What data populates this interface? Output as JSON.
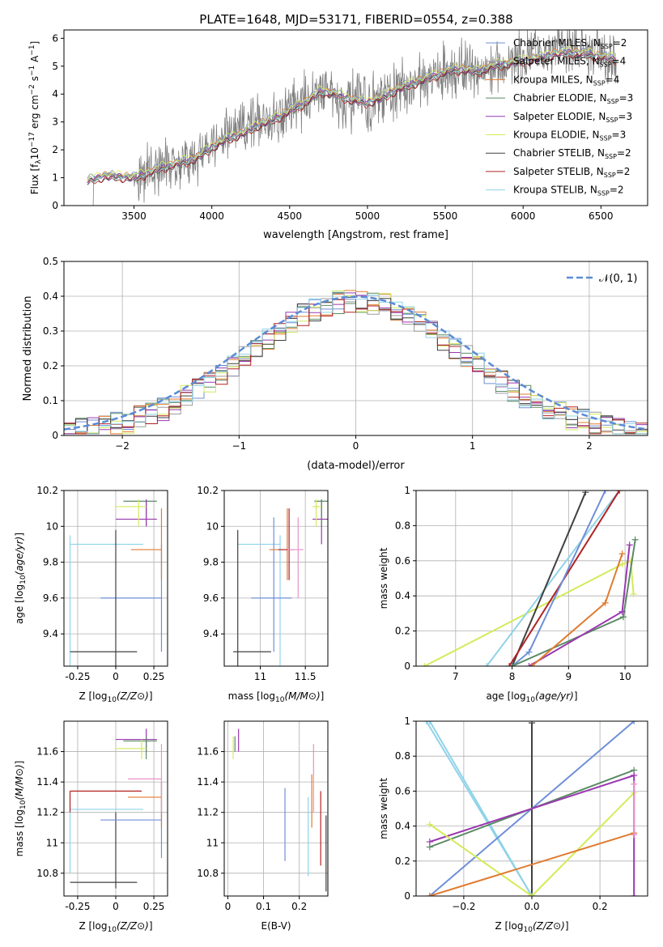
{
  "figure_title": "PLATE=1648, MJD=53171, FIBERID=0554, z=0.388",
  "chart_data": [
    {
      "id": "spectrum",
      "type": "line",
      "xlabel": "wavelength [Angstrom, rest frame]",
      "ylabel": "Flux [f$_\\lambda$10$^{-17}$ erg cm$^{-2}$ s$^{-1}$ A$^{-1}$]",
      "ylabel_parts": {
        "a": "Flux [f",
        "b": "λ",
        "c": "10",
        "d": "−17",
        "e": " erg cm",
        "f": "−2",
        "g": " s",
        "h": "−1",
        "i": " A",
        "j": "−1",
        "k": "]"
      },
      "xlim": [
        3050,
        6800
      ],
      "ylim": [
        0,
        6.3
      ],
      "xticks": [
        3500,
        4000,
        4500,
        5000,
        5500,
        6000,
        6500
      ],
      "yticks": [
        0,
        1,
        2,
        3,
        4,
        5,
        6
      ],
      "legend_position": "right",
      "observed": {
        "color": "#808080",
        "x": [
          3220,
          3240,
          3300,
          3500,
          3600,
          3700,
          3800,
          3900,
          4000,
          4100,
          4200,
          4300,
          4400,
          4500,
          4600,
          4700,
          4800,
          4900,
          5000,
          5100,
          5200,
          5300,
          5400,
          5500,
          5600,
          5700,
          5800,
          5900,
          6000,
          6100,
          6200,
          6300,
          6400,
          6500,
          6600
        ],
        "y": [
          0.0,
          0.95,
          1.1,
          1.05,
          1.3,
          1.5,
          1.6,
          1.7,
          2.3,
          2.5,
          2.7,
          3.0,
          3.2,
          3.5,
          3.8,
          4.2,
          3.9,
          3.7,
          3.6,
          3.8,
          4.2,
          4.4,
          4.6,
          4.8,
          4.9,
          4.7,
          5.0,
          5.1,
          5.2,
          5.3,
          5.6,
          5.7,
          5.5,
          5.4,
          5.2
        ],
        "noise_from_wavelength": 3500,
        "noise_amplitude": 1.8
      },
      "model": {
        "x": [
          3200,
          3300,
          3400,
          3500,
          3600,
          3700,
          3800,
          3900,
          4000,
          4100,
          4200,
          4300,
          4400,
          4500,
          4600,
          4700,
          4800,
          4900,
          5000,
          5100,
          5200,
          5300,
          5400,
          5500,
          5600,
          5700,
          5800,
          5900,
          6000,
          6100,
          6200,
          6300,
          6400,
          6500,
          6600
        ],
        "y": [
          0.9,
          1.05,
          1.05,
          1.0,
          1.2,
          1.4,
          1.55,
          1.7,
          2.1,
          2.4,
          2.6,
          2.9,
          3.1,
          3.4,
          3.7,
          4.1,
          4.0,
          3.8,
          3.7,
          3.9,
          4.2,
          4.4,
          4.6,
          4.8,
          4.9,
          4.8,
          5.0,
          5.1,
          5.2,
          5.3,
          5.45,
          5.5,
          5.45,
          5.35,
          5.25
        ]
      },
      "series": [
        {
          "name_text": "Chabrier MILES, N",
          "sub": "SSP",
          "suffix": "=2",
          "color": "#6f8fd8",
          "offset": 0.08
        },
        {
          "name_text": "Salpeter MILES, N",
          "sub": "SSP",
          "suffix": "=4",
          "color": "#9c9c9c",
          "offset": 0.03
        },
        {
          "name_text": "Kroupa MILES, N",
          "sub": "SSP",
          "suffix": "=4",
          "color": "#e07b2f",
          "offset": 0.05
        },
        {
          "name_text": "Chabrier ELODIE, N",
          "sub": "SSP",
          "suffix": "=3",
          "color": "#5a8a64",
          "offset": -0.05
        },
        {
          "name_text": "Salpeter ELODIE, N",
          "sub": "SSP",
          "suffix": "=3",
          "color": "#9a38b0",
          "offset": -0.02
        },
        {
          "name_text": "Kroupa ELODIE, N",
          "sub": "SSP",
          "suffix": "=3",
          "color": "#d4ea5a",
          "offset": 0.1
        },
        {
          "name_text": "Chabrier STELIB, N",
          "sub": "SSP",
          "suffix": "=2",
          "color": "#404040",
          "offset": -0.08
        },
        {
          "name_text": "Salpeter STELIB, N",
          "sub": "SSP",
          "suffix": "=2",
          "color": "#b22222",
          "offset": -0.1
        },
        {
          "name_text": "Kroupa STELIB, N",
          "sub": "SSP",
          "suffix": "=2",
          "color": "#8fd3e8",
          "offset": 0.0
        }
      ]
    },
    {
      "id": "residuals",
      "type": "line",
      "xlabel": "(data-model)/error",
      "ylabel": "Normed distribution",
      "xlim": [
        -2.5,
        2.5
      ],
      "ylim": [
        0,
        0.5
      ],
      "xticks": [
        -2,
        -1,
        0,
        1,
        2
      ],
      "xtick_labels": [
        "−2",
        "−1",
        "0",
        "1",
        "2"
      ],
      "yticks": [
        0.0,
        0.1,
        0.2,
        0.3,
        0.4,
        0.5
      ],
      "grid": true,
      "legend_position": "top-right",
      "gaussian": {
        "label": "𝒩(0, 1)",
        "color": "#5b8bd6",
        "mean": 0,
        "sigma": 1
      },
      "histogram_bin_width": 0.1,
      "histogram_colors": [
        "#6f8fd8",
        "#9c9c9c",
        "#e07b2f",
        "#5a8a64",
        "#9a38b0",
        "#d4ea5a",
        "#404040",
        "#b22222",
        "#8fd3e8"
      ]
    },
    {
      "id": "age-vs-Z",
      "type": "scatter",
      "xlabel": "Z [log10(Z/Z⊙)]",
      "ylabel": "age [log10(age/yr)]",
      "xlim": [
        -0.34,
        0.34
      ],
      "ylim": [
        9.22,
        10.2
      ],
      "xticks": [
        -0.25,
        0.0,
        0.25
      ],
      "yticks": [
        9.4,
        9.6,
        9.8,
        10.0,
        10.2
      ],
      "points": [
        {
          "x": -0.3,
          "y": 9.9,
          "xmin": -0.3,
          "xmax": 0.18,
          "ymin": 9.2,
          "ymax": 9.95,
          "color": "#8fd3e8"
        },
        {
          "x": 0.3,
          "y": 9.6,
          "xmin": -0.1,
          "xmax": 0.3,
          "ymin": 9.3,
          "ymax": 9.9,
          "color": "#6f8fd8"
        },
        {
          "x": 0.0,
          "y": 9.3,
          "xmin": -0.3,
          "xmax": 0.14,
          "ymin": 9.2,
          "ymax": 9.98,
          "color": "#404040"
        },
        {
          "x": 0.3,
          "y": 9.87,
          "xmin": 0.1,
          "xmax": 0.3,
          "ymin": 9.7,
          "ymax": 10.1,
          "color": "#e07b2f"
        },
        {
          "x": 0.2,
          "y": 10.14,
          "xmin": 0.05,
          "xmax": 0.27,
          "ymin": 10.0,
          "ymax": 10.15,
          "color": "#5a8a64"
        },
        {
          "x": 0.2,
          "y": 10.04,
          "xmin": 0.0,
          "xmax": 0.27,
          "ymin": 10.0,
          "ymax": 10.15,
          "color": "#9a38b0"
        },
        {
          "x": 0.15,
          "y": 10.11,
          "xmin": 0.0,
          "xmax": 0.2,
          "ymin": 10.0,
          "ymax": 10.15,
          "color": "#d4ea5a"
        }
      ]
    },
    {
      "id": "age-vs-mass",
      "type": "scatter",
      "xlabel": "mass [log10(M/M⊙)]",
      "ylabel": "",
      "xlim": [
        10.6,
        11.75
      ],
      "ylim": [
        9.22,
        10.2
      ],
      "xticks": [
        11.0,
        11.5
      ],
      "yticks": [
        9.4,
        9.6,
        9.8,
        10.0,
        10.2
      ],
      "points": [
        {
          "x": 11.22,
          "y": 9.9,
          "xmin": 10.75,
          "xmax": 11.22,
          "ymin": 9.2,
          "ymax": 9.95,
          "color": "#8fd3e8"
        },
        {
          "x": 11.15,
          "y": 9.6,
          "xmin": 10.9,
          "xmax": 11.35,
          "ymin": 9.3,
          "ymax": 10.05,
          "color": "#6f8fd8"
        },
        {
          "x": 10.75,
          "y": 9.3,
          "xmin": 10.7,
          "xmax": 11.12,
          "ymin": 9.2,
          "ymax": 9.98,
          "color": "#404040"
        },
        {
          "x": 11.3,
          "y": 9.87,
          "xmin": 11.1,
          "xmax": 11.35,
          "ymin": 9.7,
          "ymax": 10.1,
          "color": "#e07b2f"
        },
        {
          "x": 11.32,
          "y": 9.87,
          "xmin": 11.2,
          "xmax": 11.38,
          "ymin": 9.7,
          "ymax": 10.1,
          "color": "#b22222"
        },
        {
          "x": 11.42,
          "y": 9.87,
          "xmin": 11.3,
          "xmax": 11.48,
          "ymin": 9.6,
          "ymax": 10.05,
          "color": "#e892c8"
        },
        {
          "x": 11.68,
          "y": 10.04,
          "xmin": 11.58,
          "xmax": 11.75,
          "ymin": 9.9,
          "ymax": 10.15,
          "color": "#9a38b0"
        },
        {
          "x": 11.68,
          "y": 10.14,
          "xmin": 11.6,
          "xmax": 11.75,
          "ymin": 10.0,
          "ymax": 10.15,
          "color": "#5a8a64"
        },
        {
          "x": 11.62,
          "y": 10.11,
          "xmin": 11.58,
          "xmax": 11.68,
          "ymin": 10.0,
          "ymax": 10.15,
          "color": "#d4ea5a"
        }
      ]
    },
    {
      "id": "weight-vs-age",
      "type": "line",
      "xlabel": "age [log10(age/yr)]",
      "ylabel": "mass weight",
      "xlim": [
        6.3,
        10.4
      ],
      "ylim": [
        0,
        1
      ],
      "xticks": [
        7,
        8,
        9,
        10
      ],
      "yticks": [
        0.0,
        0.2,
        0.4,
        0.6,
        0.8,
        1.0
      ],
      "grid": true,
      "series": [
        {
          "color": "#d4ea5a",
          "x": [
            6.45,
            9.95,
            10.1,
            10.15
          ],
          "y": [
            0.0,
            0.58,
            0.6,
            0.41
          ]
        },
        {
          "color": "#8fd3e8",
          "x": [
            7.55,
            9.9
          ],
          "y": [
            0.0,
            1.0
          ]
        },
        {
          "color": "#404040",
          "x": [
            8.0,
            9.3
          ],
          "y": [
            0.0,
            0.99
          ]
        },
        {
          "color": "#b22222",
          "x": [
            7.95,
            9.9
          ],
          "y": [
            0.0,
            1.0
          ]
        },
        {
          "color": "#6f8fd8",
          "x": [
            8.0,
            8.3,
            9.65
          ],
          "y": [
            0.0,
            0.08,
            1.0
          ]
        },
        {
          "color": "#5a8a64",
          "x": [
            8.0,
            9.97,
            10.18
          ],
          "y": [
            0.0,
            0.28,
            0.72
          ]
        },
        {
          "color": "#9a38b0",
          "x": [
            8.3,
            9.95,
            10.08
          ],
          "y": [
            0.0,
            0.31,
            0.69
          ]
        },
        {
          "color": "#e07b2f",
          "x": [
            8.35,
            9.65,
            9.95
          ],
          "y": [
            0.0,
            0.36,
            0.64
          ]
        }
      ]
    },
    {
      "id": "mass-vs-Z",
      "type": "scatter",
      "xlabel": "Z [log10(Z/Z⊙)]",
      "ylabel": "mass [log10(M/M⊙)]",
      "xlim": [
        -0.34,
        0.34
      ],
      "ylim": [
        10.65,
        11.8
      ],
      "xticks": [
        -0.25,
        0.0,
        0.25
      ],
      "yticks": [
        10.8,
        11.0,
        11.2,
        11.4,
        11.6
      ],
      "points": [
        {
          "x": -0.3,
          "y": 11.22,
          "xmin": -0.3,
          "xmax": 0.18,
          "ymin": 10.8,
          "ymax": 11.3,
          "color": "#8fd3e8"
        },
        {
          "x": 0.0,
          "y": 10.74,
          "xmin": -0.3,
          "xmax": 0.14,
          "ymin": 10.7,
          "ymax": 11.2,
          "color": "#404040"
        },
        {
          "x": -0.3,
          "y": 11.34,
          "xmin": -0.3,
          "xmax": 0.17,
          "ymin": 11.2,
          "ymax": 11.34,
          "color": "#b22222"
        },
        {
          "x": 0.3,
          "y": 11.15,
          "xmin": -0.1,
          "xmax": 0.3,
          "ymin": 10.9,
          "ymax": 11.4,
          "color": "#6f8fd8"
        },
        {
          "x": 0.3,
          "y": 11.3,
          "xmin": 0.08,
          "xmax": 0.3,
          "ymin": 11.1,
          "ymax": 11.4,
          "color": "#e07b2f"
        },
        {
          "x": 0.3,
          "y": 11.42,
          "xmin": 0.08,
          "xmax": 0.3,
          "ymin": 11.2,
          "ymax": 11.65,
          "color": "#e892c8"
        },
        {
          "x": 0.2,
          "y": 11.68,
          "xmin": 0.0,
          "xmax": 0.27,
          "ymin": 11.6,
          "ymax": 11.75,
          "color": "#9a38b0"
        },
        {
          "x": 0.2,
          "y": 11.67,
          "xmin": 0.05,
          "xmax": 0.27,
          "ymin": 11.55,
          "ymax": 11.7,
          "color": "#5a8a64"
        },
        {
          "x": 0.17,
          "y": 11.62,
          "xmin": 0.0,
          "xmax": 0.2,
          "ymin": 11.55,
          "ymax": 11.68,
          "color": "#d4ea5a"
        }
      ]
    },
    {
      "id": "mass-vs-EBV",
      "type": "scatter",
      "xlabel": "E(B-V)",
      "ylabel": "",
      "xlim": [
        -0.01,
        0.28
      ],
      "ylim": [
        10.65,
        11.8
      ],
      "xticks": [
        0.0,
        0.1,
        0.2
      ],
      "yticks": [
        10.8,
        11.0,
        11.2,
        11.4,
        11.6
      ],
      "vlines": [
        {
          "x": 0.015,
          "ymin": 11.55,
          "ymax": 11.7,
          "color": "#d4ea5a"
        },
        {
          "x": 0.03,
          "ymin": 11.6,
          "ymax": 11.75,
          "color": "#9a38b0"
        },
        {
          "x": 0.02,
          "ymin": 11.6,
          "ymax": 11.7,
          "color": "#5a8a64"
        },
        {
          "x": 0.16,
          "ymin": 10.88,
          "ymax": 11.36,
          "color": "#6f8fd8"
        },
        {
          "x": 0.225,
          "ymin": 10.78,
          "ymax": 11.3,
          "color": "#8fd3e8"
        },
        {
          "x": 0.235,
          "ymin": 11.1,
          "ymax": 11.45,
          "color": "#e07b2f"
        },
        {
          "x": 0.24,
          "ymin": 11.2,
          "ymax": 11.65,
          "color": "#e892c8"
        },
        {
          "x": 0.26,
          "ymin": 10.85,
          "ymax": 11.34,
          "color": "#b22222"
        },
        {
          "x": 0.275,
          "ymin": 10.68,
          "ymax": 11.18,
          "color": "#404040"
        }
      ]
    },
    {
      "id": "weight-vs-Z",
      "type": "line",
      "xlabel": "Z [log10(Z/Z⊙)]",
      "ylabel": "mass weight",
      "xlim": [
        -0.34,
        0.34
      ],
      "ylim": [
        0,
        1
      ],
      "xticks": [
        -0.2,
        0.0,
        0.2
      ],
      "xtick_labels": [
        "−0.2",
        "0.0",
        "0.2"
      ],
      "yticks": [
        0.0,
        0.2,
        0.4,
        0.6,
        0.8,
        1.0
      ],
      "grid": true,
      "series": [
        {
          "color": "#8fd3e8",
          "x": [
            -0.3,
            0.0
          ],
          "y": [
            1.0,
            0.0
          ]
        },
        {
          "color": "#8fd3e8",
          "x": [
            -0.31,
            -0.0
          ],
          "y": [
            1.0,
            0.0
          ]
        },
        {
          "color": "#404040",
          "x": [
            0.0,
            0.0
          ],
          "y": [
            0.0,
            0.99
          ]
        },
        {
          "color": "#6f8fd8",
          "x": [
            -0.3,
            0.3
          ],
          "y": [
            0.0,
            1.0
          ]
        },
        {
          "color": "#5a8a64",
          "x": [
            -0.3,
            0.3
          ],
          "y": [
            0.28,
            0.72
          ]
        },
        {
          "color": "#9a38b0",
          "x": [
            -0.3,
            0.3
          ],
          "y": [
            0.31,
            0.69
          ]
        },
        {
          "color": "#d4ea5a",
          "x": [
            -0.3,
            0.0,
            0.3
          ],
          "y": [
            0.41,
            0.0,
            0.59
          ]
        },
        {
          "color": "#e07b2f",
          "x": [
            -0.3,
            0.3
          ],
          "y": [
            0.0,
            0.36
          ]
        },
        {
          "color": "#9a38b0",
          "x": [
            0.3,
            0.3
          ],
          "y": [
            0.0,
            0.69
          ]
        },
        {
          "color": "#e892c8",
          "x": [
            0.3,
            0.3
          ],
          "y": [
            0.35,
            0.64
          ]
        }
      ]
    }
  ]
}
